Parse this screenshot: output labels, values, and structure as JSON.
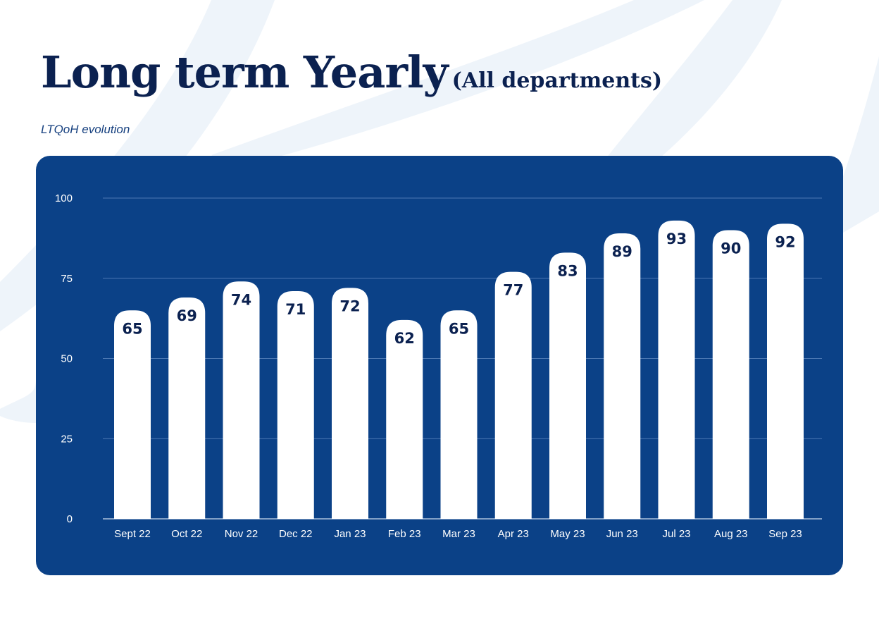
{
  "page": {
    "title": "Long term Yearly",
    "title_suffix": "(All departments)",
    "subtitle": "LTQoH evolution"
  },
  "colors": {
    "panel": "#0b4187",
    "bar": "#ffffff",
    "title": "#0b2150",
    "grid": "#4d78b3",
    "swoosh": "#eef4fa"
  },
  "chart_data": {
    "type": "bar",
    "title": "Long term Yearly (All departments)",
    "subtitle": "LTQoH evolution",
    "categories": [
      "Sept 22",
      "Oct 22",
      "Nov 22",
      "Dec 22",
      "Jan 23",
      "Feb 23",
      "Mar 23",
      "Apr 23",
      "May 23",
      "Jun 23",
      "Jul 23",
      "Aug 23",
      "Sep 23"
    ],
    "values": [
      65,
      69,
      74,
      71,
      72,
      62,
      65,
      77,
      83,
      89,
      93,
      90,
      92
    ],
    "yticks": [
      0,
      25,
      50,
      75,
      100
    ],
    "ylim": [
      0,
      100
    ],
    "grid": true,
    "data_labels": true,
    "xlabel": "",
    "ylabel": ""
  }
}
